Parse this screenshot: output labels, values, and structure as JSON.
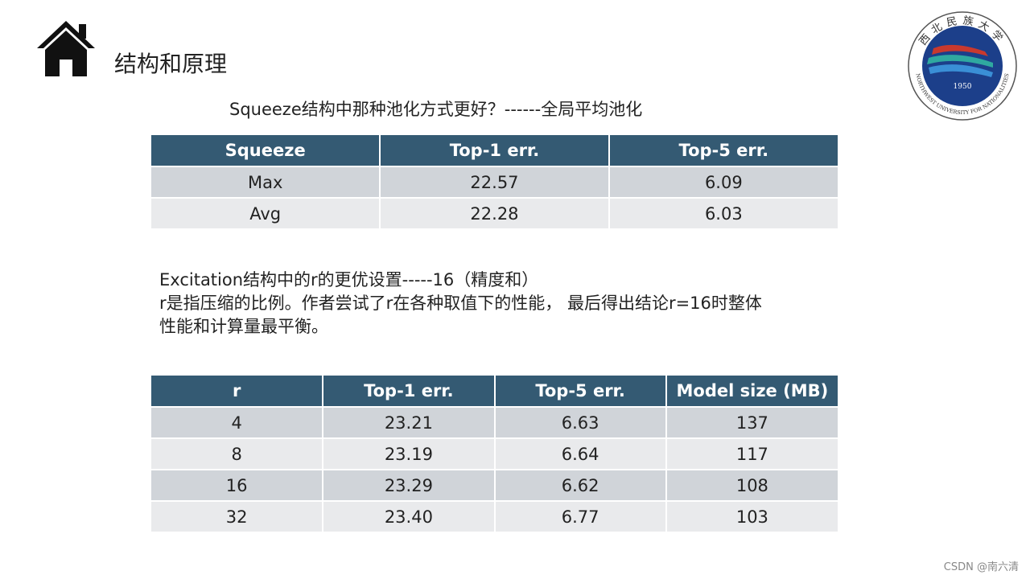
{
  "header": {
    "title": "结构和原理"
  },
  "logo": {
    "name_cn": "西北民族大学",
    "name_en": "NORTHWEST UNIVERSITY FOR NATIONALITIES",
    "year": "1950"
  },
  "question": "Squeeze结构中那种池化方式更好？------全局平均池化",
  "table1": {
    "columns": [
      "Squeeze",
      "Top-1 err.",
      "Top-5 err."
    ],
    "rows": [
      [
        "Max",
        "22.57",
        "6.09"
      ],
      [
        "Avg",
        "22.28",
        "6.03"
      ]
    ]
  },
  "paragraph": [
    "Excitation结构中的r的更优设置-----16（精度和）",
    "r是指压缩的比例。作者尝试了r在各种取值下的性能， 最后得出结论r=16时整体",
    "性能和计算量最平衡。"
  ],
  "table2": {
    "columns": [
      "r",
      "Top-1 err.",
      "Top-5 err.",
      "Model size (MB)"
    ],
    "rows": [
      [
        "4",
        "23.21",
        "6.63",
        "137"
      ],
      [
        "8",
        "23.19",
        "6.64",
        "117"
      ],
      [
        "16",
        "23.29",
        "6.62",
        "108"
      ],
      [
        "32",
        "23.40",
        "6.77",
        "103"
      ]
    ]
  },
  "watermark": "CSDN @南六清"
}
